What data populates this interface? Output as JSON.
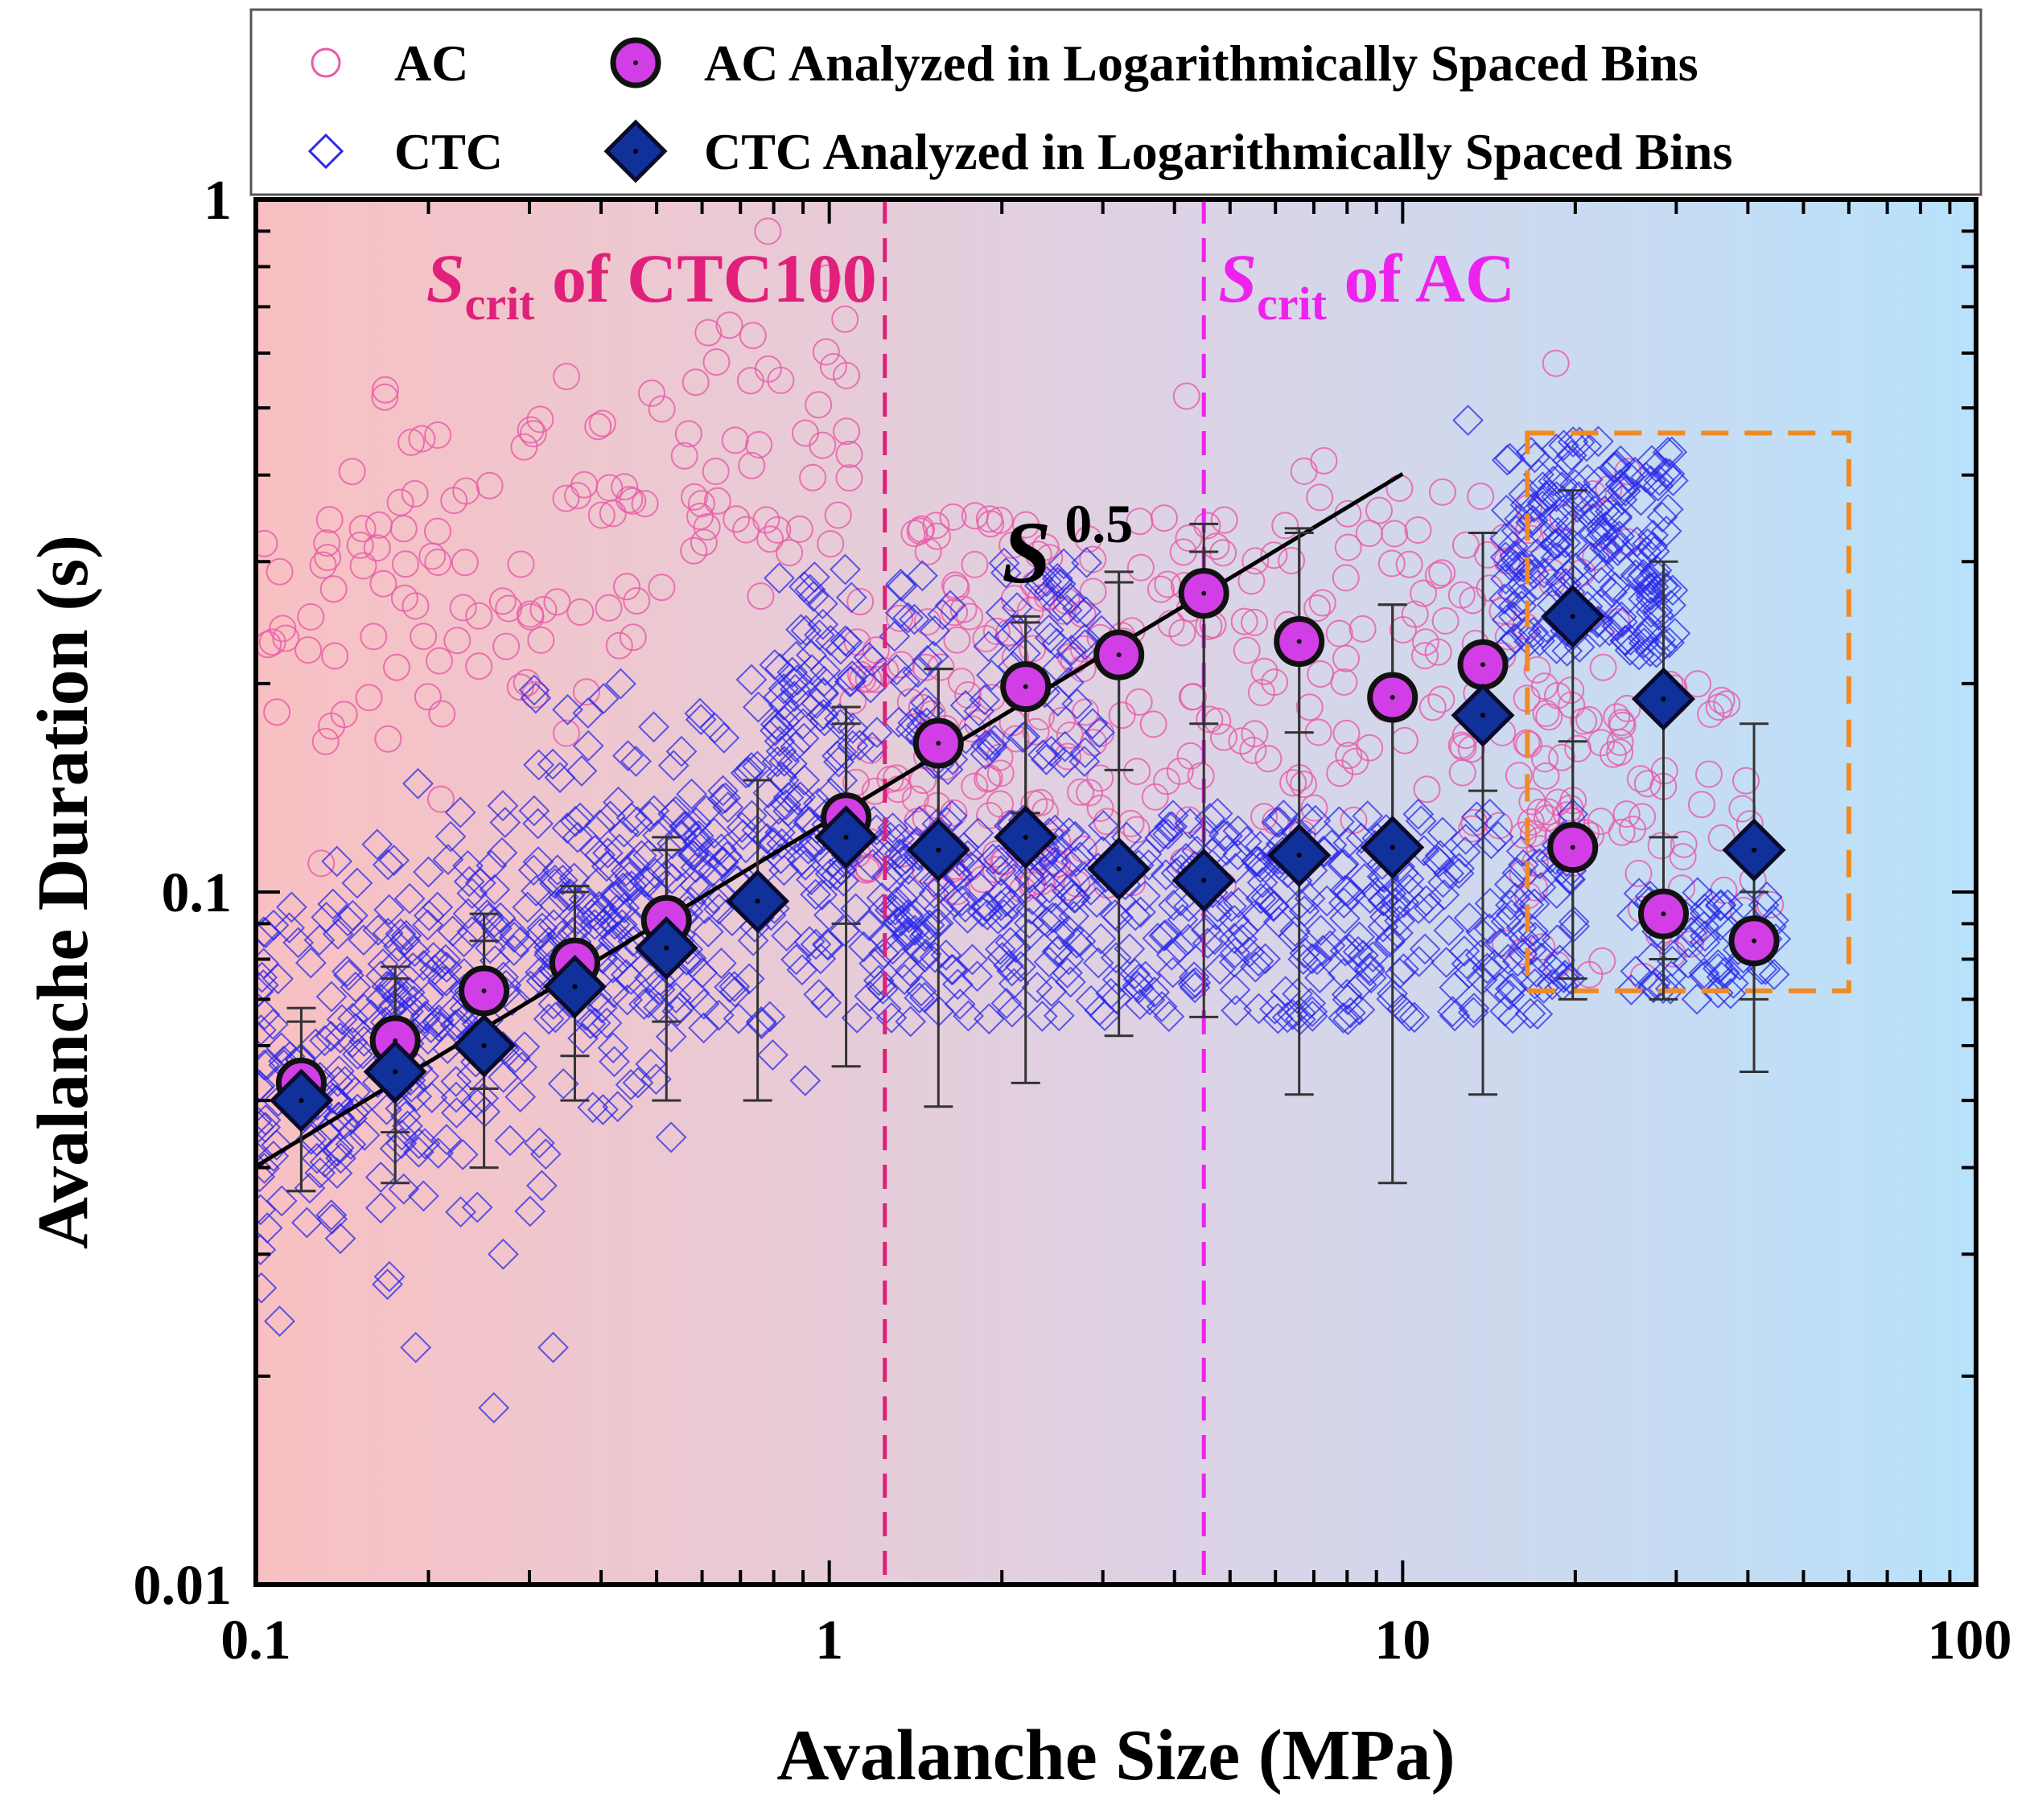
{
  "chart_data": {
    "type": "scatter",
    "xscale": "log",
    "yscale": "log",
    "xlim": [
      0.1,
      100
    ],
    "ylim": [
      0.01,
      1
    ],
    "xlabel": "Avalanche Size (MPa)",
    "ylabel": "Avalanche Duration (s)",
    "x_ticks": [
      {
        "value": 0.1,
        "label": "0.1"
      },
      {
        "value": 1,
        "label": "1"
      },
      {
        "value": 10,
        "label": "10"
      },
      {
        "value": 100,
        "label": "100"
      }
    ],
    "y_ticks": [
      {
        "value": 0.01,
        "label": "0.01"
      },
      {
        "value": 0.1,
        "label": "0.1"
      },
      {
        "value": 1,
        "label": "1"
      }
    ],
    "legend": {
      "placement": "top",
      "entries": [
        {
          "label": "AC",
          "marker": "open-circle",
          "color": "#e85aa8"
        },
        {
          "label": "AC Analyzed in Logarithmically Spaced Bins",
          "marker": "filled-circle",
          "color": "#d23ee6"
        },
        {
          "label": "CTC",
          "marker": "open-diamond",
          "color": "#2a2ae8"
        },
        {
          "label": "CTC Analyzed in Logarithmically Spaced Bins",
          "marker": "filled-diamond",
          "color": "#10309a"
        }
      ]
    },
    "series": [
      {
        "name": "AC Analyzed in Logarithmically Spaced Bins",
        "color": "#d23ee6",
        "x": [
          0.12,
          0.175,
          0.25,
          0.36,
          0.52,
          1.07,
          1.55,
          2.2,
          3.2,
          4.5,
          6.6,
          9.6,
          13.8,
          19.8,
          28.5,
          41
        ],
        "y": [
          0.053,
          0.061,
          0.072,
          0.079,
          0.091,
          0.128,
          0.164,
          0.198,
          0.22,
          0.27,
          0.23,
          0.191,
          0.213,
          0.116,
          0.093,
          0.085
        ],
        "err_low": [
          0.037,
          0.045,
          0.052,
          0.058,
          0.065,
          0.09,
          0.11,
          0.13,
          0.15,
          0.175,
          0.17,
          0.12,
          0.14,
          0.075,
          0.07,
          0.07
        ],
        "err_high": [
          0.068,
          0.078,
          0.093,
          0.1,
          0.115,
          0.175,
          0.21,
          0.245,
          0.29,
          0.34,
          0.33,
          0.26,
          0.33,
          0.165,
          0.12,
          0.1
        ]
      },
      {
        "name": "CTC Analyzed in Logarithmically Spaced Bins",
        "color": "#10309a",
        "x": [
          0.12,
          0.175,
          0.25,
          0.36,
          0.52,
          0.75,
          1.07,
          1.55,
          2.2,
          3.2,
          4.5,
          6.6,
          9.6,
          13.8,
          19.8,
          28.5,
          41
        ],
        "y": [
          0.05,
          0.055,
          0.06,
          0.073,
          0.083,
          0.097,
          0.12,
          0.115,
          0.12,
          0.108,
          0.104,
          0.113,
          0.116,
          0.18,
          0.25,
          0.19,
          0.115
        ],
        "err_low": [
          0.037,
          0.038,
          0.04,
          0.05,
          0.05,
          0.05,
          0.056,
          0.049,
          0.053,
          0.062,
          0.066,
          0.051,
          0.038,
          0.051,
          0.07,
          0.08,
          0.055
        ],
        "err_high": [
          0.065,
          0.075,
          0.085,
          0.102,
          0.12,
          0.145,
          0.185,
          0.21,
          0.25,
          0.28,
          0.31,
          0.335,
          0.26,
          0.33,
          0.38,
          0.3,
          0.175
        ]
      },
      {
        "name": "AC",
        "color": "#e85aa8",
        "clusters": [
          {
            "x_range": [
              0.1,
              1.1
            ],
            "y_trend": "0.45*S^0.33",
            "spread_dex": 0.15,
            "count": 140
          },
          {
            "x_range": [
              1.1,
              5
            ],
            "y_range": [
              0.1,
              0.35
            ],
            "count": 180
          },
          {
            "x_range": [
              5,
              25
            ],
            "y_range": [
              0.12,
              0.42
            ],
            "count": 130
          },
          {
            "x_range": [
              15,
              45
            ],
            "y_range": [
              0.075,
              0.2
            ],
            "count": 70
          }
        ],
        "outliers": [
          {
            "x": 4.2,
            "y": 0.52
          },
          {
            "x": 18.5,
            "y": 0.58
          },
          {
            "x": 0.13,
            "y": 0.11
          }
        ]
      },
      {
        "name": "CTC",
        "color": "#2a2ae8",
        "clusters": [
          {
            "x_range": [
              0.1,
              1.1
            ],
            "y_trend": "0.13*S^0.4",
            "spread_dex": 0.14,
            "count": 600
          },
          {
            "x_range": [
              1.1,
              20
            ],
            "y_range": [
              0.065,
              0.13
            ],
            "count": 500
          },
          {
            "x_range": [
              0.8,
              3
            ],
            "y_range": [
              0.15,
              0.3
            ],
            "count": 120
          },
          {
            "x_range": [
              15,
              30
            ],
            "y_range": [
              0.22,
              0.45
            ],
            "count": 200
          },
          {
            "x_range": [
              25,
              45
            ],
            "y_range": [
              0.07,
              0.1
            ],
            "count": 60
          }
        ],
        "outliers": [
          {
            "x": 0.11,
            "y": 0.024
          },
          {
            "x": 0.19,
            "y": 0.022
          },
          {
            "x": 0.26,
            "y": 0.018
          },
          {
            "x": 0.33,
            "y": 0.022
          },
          {
            "x": 0.27,
            "y": 0.03
          },
          {
            "x": 13.0,
            "y": 0.48
          }
        ]
      }
    ],
    "fit_line": {
      "label": "S",
      "exponent_label": "0.5",
      "x_range": [
        0.1,
        10
      ],
      "y_at_1": 0.127,
      "slope": 0.5
    },
    "vlines": [
      {
        "x": 1.25,
        "label_main": "S",
        "label_sub": "crit",
        "label_rest": " of CTC100",
        "color": "#e0207a"
      },
      {
        "x": 4.5,
        "label_main": "S",
        "label_sub": "crit",
        "label_rest": " of AC",
        "color": "#ee22ee"
      }
    ],
    "highlight_box": {
      "x_range": [
        16.5,
        60
      ],
      "y_range": [
        0.072,
        0.46
      ],
      "color": "#f08a24"
    },
    "background_gradient": [
      "#f8c0c2",
      "#dcd3e6",
      "#b8e2fb"
    ]
  }
}
